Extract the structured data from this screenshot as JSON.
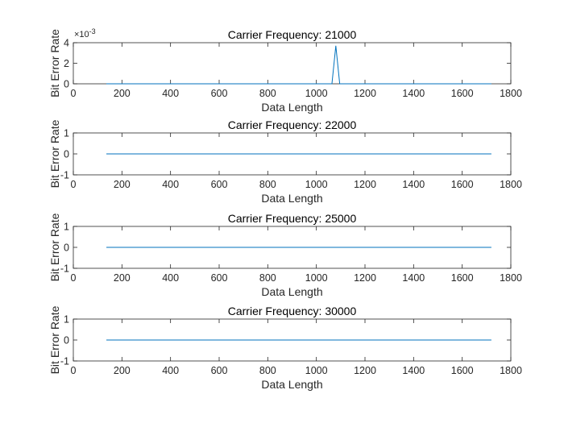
{
  "colors": {
    "line": "#0072BD",
    "axis": "#262626",
    "background": "#ffffff"
  },
  "chart_data": [
    {
      "type": "line",
      "title": "Carrier Frequency: 21000",
      "xlabel": "Data Length",
      "ylabel": "Bit Error Rate",
      "xlim": [
        0,
        1800
      ],
      "ylim": [
        0,
        0.004
      ],
      "xticks": [
        "0",
        "200",
        "400",
        "600",
        "800",
        "1000",
        "1200",
        "1400",
        "1600",
        "1800"
      ],
      "yticks": [
        "0",
        "2",
        "4"
      ],
      "ytick_values": [
        0,
        0.002,
        0.004
      ],
      "exponent_label": "×10",
      "exponent_power": "-3",
      "grid": false,
      "series": [
        {
          "x": [
            136,
            1064,
            1080,
            1096,
            1720
          ],
          "y": [
            0,
            0,
            0.0037,
            0,
            0
          ]
        }
      ]
    },
    {
      "type": "line",
      "title": "Carrier Frequency: 22000",
      "xlabel": "Data Length",
      "ylabel": "Bit Error Rate",
      "xlim": [
        0,
        1800
      ],
      "ylim": [
        -1,
        1
      ],
      "xticks": [
        "0",
        "200",
        "400",
        "600",
        "800",
        "1000",
        "1200",
        "1400",
        "1600",
        "1800"
      ],
      "yticks": [
        "-1",
        "0",
        "1"
      ],
      "ytick_values": [
        -1,
        0,
        1
      ],
      "grid": false,
      "series": [
        {
          "x": [
            136,
            1720
          ],
          "y": [
            0,
            0
          ]
        }
      ]
    },
    {
      "type": "line",
      "title": "Carrier Frequency: 25000",
      "xlabel": "Data Length",
      "ylabel": "Bit Error Rate",
      "xlim": [
        0,
        1800
      ],
      "ylim": [
        -1,
        1
      ],
      "xticks": [
        "0",
        "200",
        "400",
        "600",
        "800",
        "1000",
        "1200",
        "1400",
        "1600",
        "1800"
      ],
      "yticks": [
        "-1",
        "0",
        "1"
      ],
      "ytick_values": [
        -1,
        0,
        1
      ],
      "grid": false,
      "series": [
        {
          "x": [
            136,
            1720
          ],
          "y": [
            0,
            0
          ]
        }
      ]
    },
    {
      "type": "line",
      "title": "Carrier Frequency: 30000",
      "xlabel": "Data Length",
      "ylabel": "Bit Error Rate",
      "xlim": [
        0,
        1800
      ],
      "ylim": [
        -1,
        1
      ],
      "xticks": [
        "0",
        "200",
        "400",
        "600",
        "800",
        "1000",
        "1200",
        "1400",
        "1600",
        "1800"
      ],
      "yticks": [
        "-1",
        "0",
        "1"
      ],
      "ytick_values": [
        -1,
        0,
        1
      ],
      "grid": false,
      "series": [
        {
          "x": [
            136,
            1720
          ],
          "y": [
            0,
            0
          ]
        }
      ]
    }
  ]
}
